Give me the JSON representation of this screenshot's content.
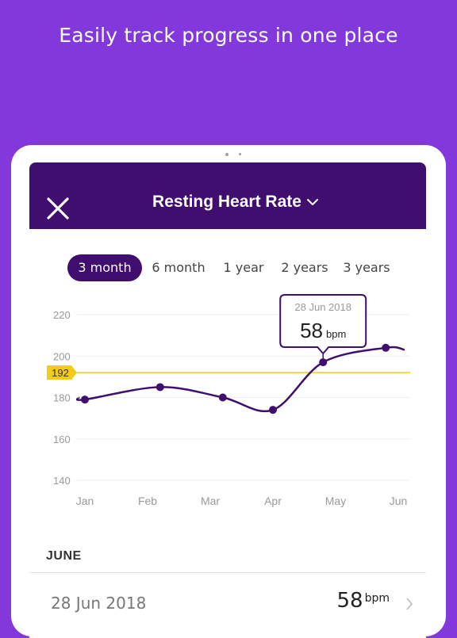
{
  "headline": "Easily track progress in one place",
  "colors": {
    "background": "#8338dc",
    "header": "#3f0e6e",
    "accent_line": "#f4cb1a",
    "series": "#3f0e6e"
  },
  "header": {
    "close_icon": "close-icon",
    "title": "Resting Heart Rate",
    "dropdown_icon": "chevron-down-icon"
  },
  "tabs": [
    {
      "label": "3 month",
      "active": true
    },
    {
      "label": "6 month",
      "active": false
    },
    {
      "label": "1 year",
      "active": false
    },
    {
      "label": "2 years",
      "active": false
    },
    {
      "label": "3 years",
      "active": false
    }
  ],
  "tooltip": {
    "date": "28 Jun 2018",
    "value": "58",
    "unit": "bpm"
  },
  "chart_data": {
    "type": "line",
    "categories": [
      "Jan",
      "Feb",
      "Mar",
      "Apr",
      "May",
      "Jun"
    ],
    "yticks": [
      140,
      160,
      180,
      200,
      220
    ],
    "ylim": [
      140,
      220
    ],
    "reference_line": {
      "value": 192,
      "label": "192"
    },
    "points": [
      {
        "x": 0,
        "y": 179
      },
      {
        "x": 1.2,
        "y": 185
      },
      {
        "x": 2.2,
        "y": 180
      },
      {
        "x": 3.0,
        "y": 174
      },
      {
        "x": 3.8,
        "y": 197
      },
      {
        "x": 4.8,
        "y": 204
      }
    ],
    "line_start": {
      "x": -0.1,
      "y": 180
    },
    "line_end": {
      "x": 5.1,
      "y": 203
    }
  },
  "section": {
    "title": "JUNE"
  },
  "row": {
    "date": "28 Jun 2018",
    "value": "58",
    "unit": "bpm",
    "chevron_icon": "chevron-right-icon"
  }
}
